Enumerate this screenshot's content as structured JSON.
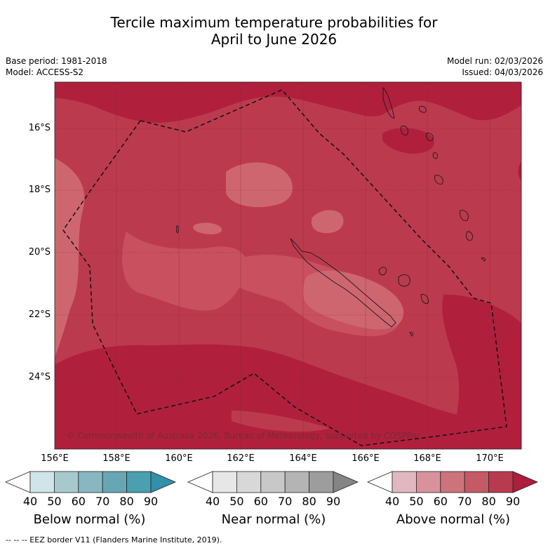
{
  "header": {
    "title_line1": "Tercile maximum temperature probabilities for",
    "title_line2": "April to June 2026",
    "base_period": "Base period: 1981-2018",
    "model": "Model: ACCESS-S2",
    "model_run": "Model run: 02/03/2026",
    "issued": "Issued: 04/03/2026"
  },
  "map": {
    "lat_labels": [
      "16°S",
      "18°S",
      "20°S",
      "22°S",
      "24°S"
    ],
    "lon_labels": [
      "156°E",
      "158°E",
      "160°E",
      "162°E",
      "164°E",
      "166°E",
      "168°E",
      "170°E"
    ],
    "copyright": "© Commonwealth of Australia 2026, Bureau of Meteorology, supported by COSPPac",
    "colors": {
      "above_60_70": "#ce6670",
      "above_70_80": "#bc3a4e",
      "above_80_90": "#b0203d"
    }
  },
  "colorbars": [
    {
      "title": "Below normal (%)",
      "ticks": [
        "40",
        "50",
        "60",
        "70",
        "80",
        "90"
      ],
      "colors": [
        "#ffffff",
        "#cfe5ea",
        "#a7c9ce",
        "#89b7c1",
        "#67a7b4",
        "#4a9fb0",
        "#3191a8"
      ]
    },
    {
      "title": "Near normal (%)",
      "ticks": [
        "40",
        "50",
        "60",
        "70",
        "80",
        "90"
      ],
      "colors": [
        "#ffffff",
        "#e7e7e7",
        "#d8d8d8",
        "#c8c8c8",
        "#b4b4b4",
        "#9d9d9d",
        "#858585"
      ]
    },
    {
      "title": "Above normal (%)",
      "ticks": [
        "40",
        "50",
        "60",
        "70",
        "80",
        "90"
      ],
      "colors": [
        "#ffffff",
        "#e1b8bf",
        "#d8929b",
        "#cc737c",
        "#c45a66",
        "#b83a4e",
        "#ad1e3c"
      ]
    }
  ],
  "footer": "-- -- -- EEZ border V11 (Flanders Marine Institute, 2019)."
}
